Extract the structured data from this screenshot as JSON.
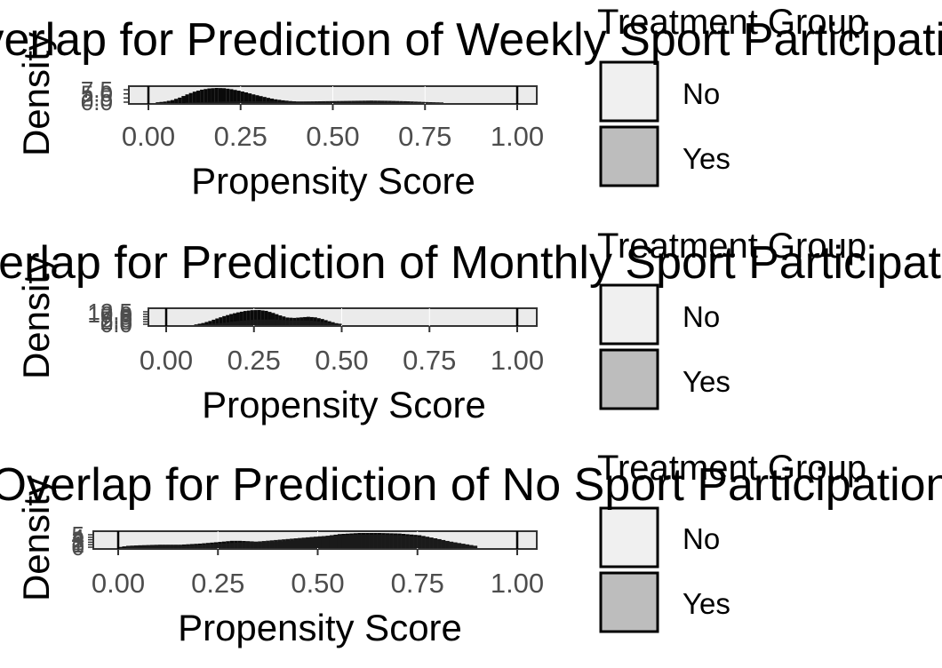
{
  "chart_data": [
    {
      "type": "bar",
      "title": "Overlap for Prediction of Weekly Sport Participation",
      "xlabel": "Propensity Score",
      "ylabel": "Density",
      "xlim": [
        0,
        1
      ],
      "x_ticks": [
        "0.00",
        "0.25",
        "0.50",
        "0.75",
        "1.00"
      ],
      "y_tick_labels": [
        "0.0",
        "2.5",
        "5.0",
        "7.5"
      ],
      "legend": {
        "title": "Treatment Group",
        "position": "right",
        "entries": [
          "No",
          "Yes"
        ]
      },
      "colors": {
        "No": "#f0f0f0",
        "Yes": "#bdbdbd"
      },
      "bin_width": 0.01,
      "series": [
        {
          "name": "No",
          "x": [
            0.02,
            0.04,
            0.06,
            0.08,
            0.1,
            0.12,
            0.14,
            0.16,
            0.18,
            0.2,
            0.22,
            0.24,
            0.26,
            0.28,
            0.3,
            0.32,
            0.34,
            0.36,
            0.38,
            0.4,
            0.45,
            0.5,
            0.55,
            0.6,
            0.65,
            0.7
          ],
          "values": [
            0.3,
            0.6,
            1.2,
            2.2,
            3.5,
            4.6,
            5.4,
            5.9,
            6.1,
            6.0,
            5.6,
            5.0,
            4.3,
            3.5,
            2.8,
            2.1,
            1.5,
            1.1,
            0.8,
            0.6,
            0.5,
            0.5,
            0.6,
            0.6,
            0.4,
            0.2
          ]
        },
        {
          "name": "Yes",
          "x": [
            0.1,
            0.15,
            0.2,
            0.25,
            0.3,
            0.35,
            0.4,
            0.45,
            0.5,
            0.55,
            0.6,
            0.65,
            0.7,
            0.75,
            0.8
          ],
          "values": [
            0.2,
            0.4,
            0.6,
            0.7,
            0.7,
            0.6,
            0.6,
            0.7,
            0.8,
            0.9,
            1.0,
            0.9,
            0.7,
            0.4,
            0.2
          ]
        }
      ]
    },
    {
      "type": "bar",
      "title": "Overlap for Prediction of Monthly Sport Participation",
      "xlabel": "Propensity Score",
      "ylabel": "Density",
      "xlim": [
        0,
        1
      ],
      "x_ticks": [
        "0.00",
        "0.25",
        "0.50",
        "0.75",
        "1.00"
      ],
      "y_tick_labels": [
        "0.0",
        "2.5",
        "5.0",
        "7.5",
        "10.0",
        "12.5"
      ],
      "legend": {
        "title": "Treatment Group",
        "position": "right",
        "entries": [
          "No",
          "Yes"
        ]
      },
      "colors": {
        "No": "#f0f0f0",
        "Yes": "#bdbdbd"
      },
      "bin_width": 0.01,
      "series": [
        {
          "name": "No",
          "x": [
            0.08,
            0.1,
            0.12,
            0.14,
            0.16,
            0.18,
            0.2,
            0.22,
            0.24,
            0.26,
            0.28,
            0.3,
            0.32,
            0.34,
            0.36,
            0.38,
            0.4,
            0.42,
            0.44,
            0.46,
            0.48,
            0.5
          ],
          "values": [
            0.5,
            1.5,
            3.0,
            4.8,
            6.5,
            8.0,
            9.2,
            10.2,
            10.8,
            10.9,
            10.3,
            8.8,
            7.0,
            5.5,
            5.2,
            5.6,
            6.0,
            5.6,
            4.4,
            2.8,
            1.4,
            0.5
          ]
        },
        {
          "name": "Yes",
          "x": [
            0.1,
            0.15,
            0.2,
            0.25,
            0.3,
            0.35,
            0.4,
            0.45,
            0.5
          ],
          "values": [
            0.5,
            1.5,
            3.0,
            4.0,
            4.0,
            3.5,
            3.5,
            2.0,
            0.8
          ]
        }
      ]
    },
    {
      "type": "bar",
      "title": "Overlap for Prediction of No Sport Participation",
      "xlabel": "Propensity Score",
      "ylabel": "Density",
      "xlim": [
        0,
        1
      ],
      "x_ticks": [
        "0.00",
        "0.25",
        "0.50",
        "0.75",
        "1.00"
      ],
      "y_tick_labels": [
        "0",
        "1",
        "2",
        "3",
        "4",
        "5"
      ],
      "legend": {
        "title": "Treatment Group",
        "position": "right",
        "entries": [
          "No",
          "Yes"
        ]
      },
      "colors": {
        "No": "#f0f0f0",
        "Yes": "#bdbdbd"
      },
      "bin_width": 0.01,
      "series": [
        {
          "name": "No",
          "x": [
            0.0,
            0.02,
            0.05,
            0.1,
            0.15,
            0.2,
            0.25,
            0.28,
            0.3,
            0.33,
            0.35,
            0.4,
            0.45,
            0.5,
            0.55,
            0.6,
            0.65,
            0.7,
            0.75,
            0.8,
            0.85,
            0.9
          ],
          "values": [
            0.2,
            0.4,
            0.5,
            0.6,
            0.6,
            0.8,
            1.1,
            1.3,
            1.3,
            1.2,
            1.0,
            1.1,
            1.4,
            2.0,
            2.5,
            2.7,
            2.7,
            2.6,
            2.3,
            1.6,
            0.8,
            0.2
          ]
        },
        {
          "name": "Yes",
          "x": [
            0.02,
            0.05,
            0.1,
            0.15,
            0.2,
            0.25,
            0.3,
            0.35,
            0.4,
            0.45,
            0.5,
            0.55,
            0.6,
            0.65,
            0.7,
            0.75,
            0.8,
            0.85,
            0.9
          ],
          "values": [
            0.3,
            0.4,
            0.5,
            0.5,
            0.6,
            0.8,
            1.0,
            1.2,
            1.5,
            1.8,
            2.1,
            2.3,
            2.4,
            2.4,
            2.3,
            2.0,
            1.5,
            0.9,
            0.3
          ]
        }
      ]
    }
  ]
}
